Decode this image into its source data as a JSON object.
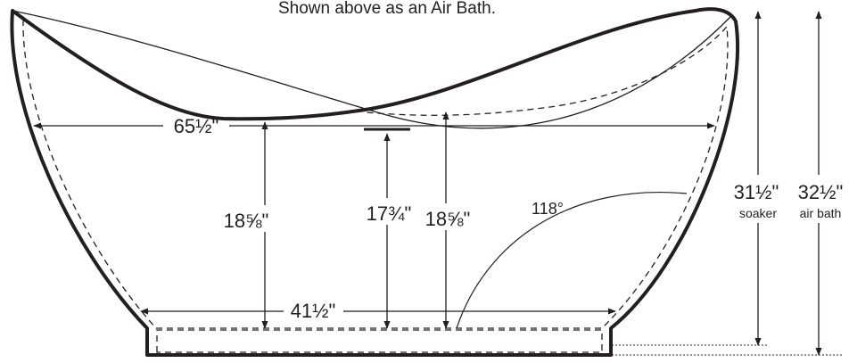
{
  "caption": "Shown above as an Air Bath.",
  "dimensions": {
    "overall_length": "65½\"",
    "base_length": "41½\"",
    "left_interior_depth": "18⅝\"",
    "center_interior_depth": "17¾\"",
    "right_interior_depth": "18⅝\"",
    "backrest_angle": "118°"
  },
  "heights": {
    "soaker_value": "31½\"",
    "soaker_label": "soaker",
    "airbath_value": "32½\"",
    "airbath_label": "air bath"
  },
  "colors": {
    "line": "#231f20",
    "background": "#ffffff"
  }
}
